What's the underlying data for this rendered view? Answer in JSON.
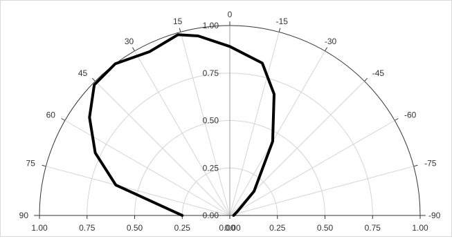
{
  "chart_data": {
    "type": "polar",
    "title": "",
    "angle_range": [
      -90,
      90
    ],
    "angle_ticks": [
      0,
      -15,
      -30,
      -45,
      -60,
      -75,
      -90,
      15,
      30,
      45,
      60,
      75,
      90
    ],
    "angle_tick_labels": [
      "0",
      "-15",
      "-30",
      "-45",
      "-60",
      "-75",
      "-90",
      "15",
      "30",
      "45",
      "60",
      "75",
      "90"
    ],
    "radial_range": [
      0,
      1
    ],
    "radial_ticks": [
      0,
      0.25,
      0.5,
      0.75,
      1.0
    ],
    "radial_tick_labels": [
      "0.00",
      "0.25",
      "0.50",
      "0.75",
      "1.00"
    ],
    "bottom_axis_labels": [
      "1.00",
      "0.75",
      "0.50",
      "0.25",
      "0.00",
      "0.00",
      "0.25",
      "0.50",
      "0.75",
      "1.00"
    ],
    "grid": true,
    "series": [
      {
        "color": "#000000",
        "points": [
          {
            "angle": -90,
            "r": 0.02
          },
          {
            "angle": -60,
            "r": 0.05
          },
          {
            "angle": -45,
            "r": 0.18
          },
          {
            "angle": -30,
            "r": 0.45
          },
          {
            "angle": -20,
            "r": 0.68
          },
          {
            "angle": -12,
            "r": 0.82
          },
          {
            "angle": 0,
            "r": 0.89
          },
          {
            "angle": 10,
            "r": 0.96
          },
          {
            "angle": 16,
            "r": 0.99
          },
          {
            "angle": 26,
            "r": 0.96
          },
          {
            "angle": 37,
            "r": 1.0
          },
          {
            "angle": 46,
            "r": 0.99
          },
          {
            "angle": 55,
            "r": 0.9
          },
          {
            "angle": 65,
            "r": 0.78
          },
          {
            "angle": 75,
            "r": 0.62
          },
          {
            "angle": 90,
            "r": 0.25
          }
        ]
      }
    ]
  }
}
